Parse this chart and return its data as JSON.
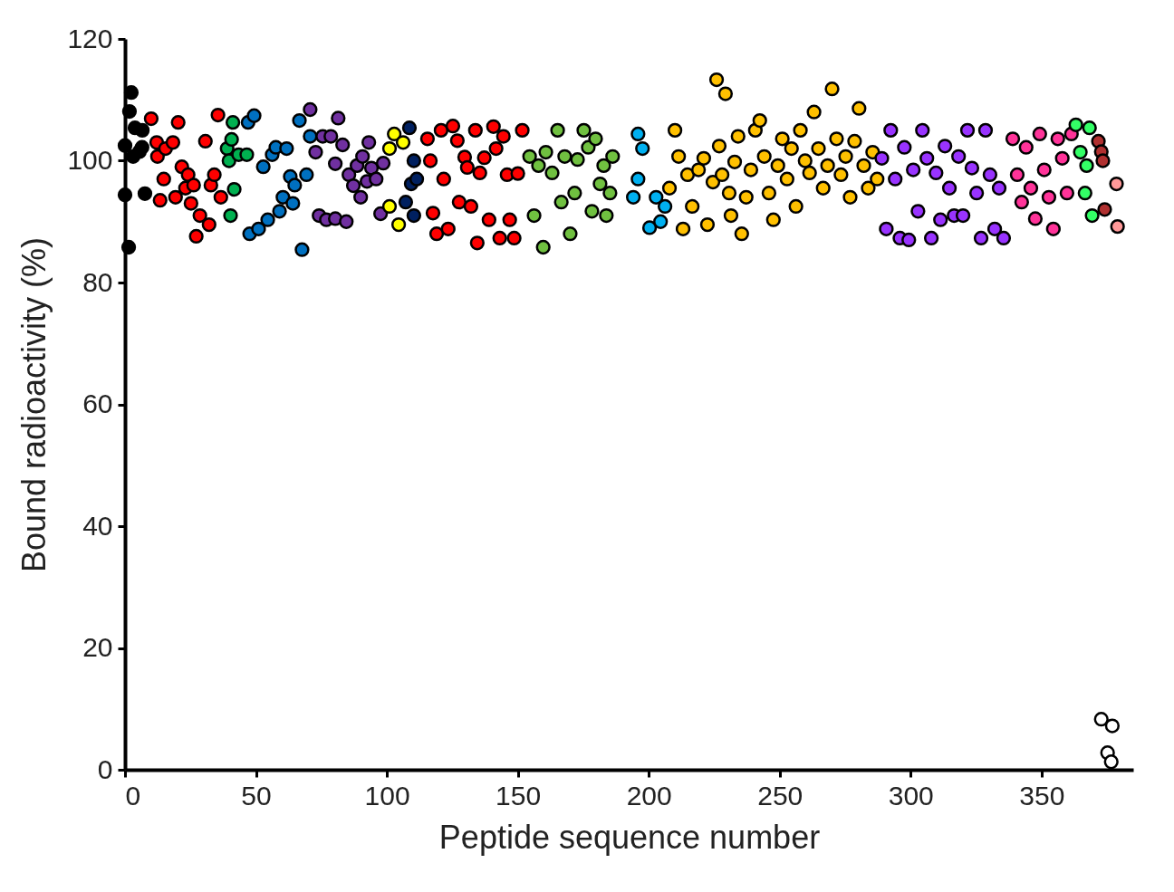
{
  "chart_data": {
    "type": "scatter",
    "xlabel": "Peptide sequence number",
    "ylabel": "Bound radioactivity (%)",
    "xlim": [
      0,
      385
    ],
    "xticks": [
      0,
      50,
      100,
      150,
      200,
      250,
      300,
      350
    ],
    "ylim": [
      0,
      120
    ],
    "yticks": [
      0,
      20,
      40,
      60,
      80,
      100,
      120
    ],
    "grid": false,
    "legend": false,
    "marker": "circle",
    "series": [
      {
        "color": "#000000",
        "x": [
          0,
          0,
          1.4,
          2.4,
          1.7,
          3.1,
          3.8,
          6.5,
          6.6,
          7.6,
          5.5
        ],
        "values": [
          102.5,
          94.4,
          85.8,
          111.2,
          108.1,
          100.7,
          105.4,
          102.2,
          105,
          94.6,
          101.5
        ]
      },
      {
        "color": "#ff0000",
        "x": [
          10,
          12.1,
          12.4,
          13.4,
          14.8,
          15.5,
          18.3,
          19.3,
          20.3,
          21.7,
          23.1,
          24.1,
          25.2,
          26.2,
          27.2,
          28.6,
          30.7,
          32.1,
          32.8,
          34.1,
          35.5,
          36.6
        ],
        "values": [
          106.9,
          103,
          100.7,
          93.5,
          97,
          102,
          103,
          94,
          106.3,
          99,
          95.5,
          97.7,
          93,
          96,
          87.6,
          91,
          103.2,
          89.5,
          96,
          97.7,
          107.5,
          94
        ]
      },
      {
        "color": "#00b050",
        "x": [
          39,
          39.7,
          40.3,
          40.7,
          41.7,
          43.4,
          41.2,
          46.5
        ],
        "values": [
          102,
          100,
          91,
          103.5,
          95.3,
          101,
          106.3,
          101
        ]
      },
      {
        "color": "#0070c0",
        "x": [
          47,
          47.6,
          49.3,
          51,
          52.8,
          54.5,
          56.2,
          57.6,
          59,
          60.3,
          61.7,
          63.1,
          64.1,
          64.8,
          66.6,
          67.6,
          69.3,
          70.7
        ],
        "values": [
          106.3,
          88,
          107.4,
          88.8,
          99,
          90.3,
          101,
          102.2,
          91.7,
          94,
          102,
          97.4,
          93,
          96,
          106.6,
          85.4,
          97.7,
          104
        ]
      },
      {
        "color": "#7030a0",
        "x": [
          70.7,
          72.8,
          74.1,
          75.5,
          76.9,
          78.6,
          80.3,
          80.3,
          81.4,
          83.1,
          84.5,
          85.5,
          87.2,
          88.6,
          90,
          90.7,
          92.4,
          93.1,
          94.1,
          95.9,
          97.6,
          98.6
        ],
        "values": [
          108.4,
          101.4,
          91,
          104,
          90.3,
          104,
          99.5,
          90.5,
          107,
          102.6,
          90,
          97.7,
          95.9,
          99.2,
          94,
          100.7,
          96.6,
          103,
          98.8,
          97,
          91.3,
          99.6
        ]
      },
      {
        "color": "#ffff00",
        "x": [
          101,
          102.8,
          101,
          104.5,
          106.2
        ],
        "values": [
          102,
          104.4,
          92.5,
          89.5,
          103
        ]
      },
      {
        "color": "#002060",
        "x": [
          108.6,
          110.3,
          107.2,
          109.3,
          110.3,
          111.4
        ],
        "values": [
          105.4,
          100,
          93.2,
          96.2,
          91,
          97
        ]
      },
      {
        "color": "#ff0000",
        "x": [
          115.5,
          116.6,
          117.6,
          119,
          120.7,
          121.7,
          123.4,
          125.2,
          126.9,
          127.6,
          129.7,
          130.7,
          132.1,
          133.8,
          134.5,
          135.5,
          137.2,
          139,
          140.7,
          141.7,
          143.1,
          144.5,
          145.9,
          146.9,
          148.6,
          150,
          151.7
        ],
        "values": [
          103.6,
          100,
          91.4,
          88,
          105,
          97,
          88.8,
          105.7,
          103.3,
          93.2,
          100.6,
          98.9,
          92.5,
          105,
          86.5,
          98,
          100.5,
          90.3,
          105.6,
          102,
          87.3,
          104,
          97.7,
          90.3,
          87.3,
          97.9,
          105
        ]
      },
      {
        "color": "#70c040",
        "x": [
          154.5,
          156.2,
          157.9,
          159.7,
          160.7,
          163.1,
          165.2,
          166.6,
          167.9,
          170,
          171.7,
          172.8,
          175.2,
          176.9,
          178.3,
          179.7,
          181.4,
          182.8,
          183.8,
          185.2,
          186.2
        ],
        "values": [
          100.7,
          91,
          99.2,
          85.8,
          101.4,
          98,
          105,
          93.2,
          100.7,
          88,
          94.7,
          100.2,
          105,
          102.2,
          91.7,
          103.6,
          96.2,
          99.2,
          91,
          94.7,
          100.7
        ]
      },
      {
        "color": "#00b0f0",
        "x": [
          195.9,
          197.6,
          194.1,
          200.3,
          202.8,
          204.5,
          206.2,
          195.9
        ],
        "values": [
          104.4,
          102,
          94,
          89,
          94,
          90,
          92.5,
          97
        ]
      },
      {
        "color": "#ffc000",
        "x": [
          207.9,
          210,
          211.4,
          213.1,
          214.8,
          216.6,
          219,
          221,
          222.4,
          224.5,
          225.9,
          226.9,
          228,
          229.3,
          230.7,
          231.4,
          232.8,
          234.1,
          235.5,
          237.2,
          239,
          240.7,
          242.4,
          244.1,
          245.9,
          247.6,
          249.3,
          251,
          252.8,
          254.5,
          256.2,
          257.9,
          259.7,
          261.4,
          263.1,
          264.8,
          266.6,
          268.3,
          270,
          271.7,
          273.4,
          275.2,
          276.9,
          278.6,
          280.3,
          282.1,
          283.8,
          285.5,
          287.2
        ],
        "values": [
          95.5,
          105,
          100.7,
          88.8,
          97.7,
          92.5,
          98.5,
          100.4,
          89.5,
          96.5,
          113.3,
          102.4,
          97.7,
          111,
          94.7,
          91,
          99.8,
          104,
          88,
          94,
          98.5,
          105,
          106.6,
          100.7,
          94.7,
          90.3,
          99.2,
          103.6,
          97,
          102,
          92.5,
          105,
          100,
          98,
          108,
          102,
          95.5,
          99.2,
          111.8,
          103.6,
          97.7,
          100.7,
          94,
          103.2,
          108.6,
          99.2,
          95.5,
          101.4,
          97
        ]
      },
      {
        "color": "#9933ff",
        "x": [
          289,
          290.7,
          292.4,
          294.1,
          295.9,
          297.6,
          299.3,
          301,
          302.8,
          304.5,
          306.2,
          307.9,
          309.7,
          311.4,
          313.1,
          314.8,
          316.6,
          318.3,
          320,
          321.7,
          323.4,
          325.2,
          326.9,
          328.6,
          330.3,
          332.1,
          333.8,
          335.5
        ],
        "values": [
          100.4,
          88.8,
          105,
          97,
          87.3,
          102.2,
          87,
          98.5,
          91.7,
          105,
          100.4,
          87.3,
          98,
          90.3,
          102.4,
          95.5,
          91,
          100.7,
          91,
          105,
          98.8,
          94.7,
          87.3,
          105,
          97.7,
          88.8,
          95.5,
          87.3
        ]
      },
      {
        "color": "#ff3399",
        "x": [
          339,
          340.7,
          342.4,
          344.1,
          345.9,
          347.6,
          349.3,
          351,
          352.8,
          354.5,
          356.2,
          357.9,
          359.7,
          361.4
        ],
        "values": [
          103.6,
          97.7,
          93.2,
          102.2,
          95.5,
          90.5,
          104.4,
          98.5,
          94,
          88.8,
          103.6,
          100.4,
          94.7,
          104.4
        ]
      },
      {
        "color": "#33ff66",
        "x": [
          363.1,
          364.8,
          366.6,
          368.3,
          369.3,
          367.2
        ],
        "values": [
          105.9,
          101.4,
          94.7,
          105.4,
          91,
          99.2
        ]
      },
      {
        "color": "#b03030",
        "x": [
          371.7,
          372.8,
          374.1,
          373.4
        ],
        "values": [
          103.2,
          101.5,
          92,
          100
        ]
      },
      {
        "color": "#ff9999",
        "x": [
          378.6,
          379
        ],
        "values": [
          96.2,
          89.2
        ]
      },
      {
        "color": "#ffffff",
        "x": [
          372.8,
          377,
          375.2,
          376.6
        ],
        "values": [
          8.3,
          7.2,
          2.8,
          1.3
        ]
      }
    ]
  }
}
